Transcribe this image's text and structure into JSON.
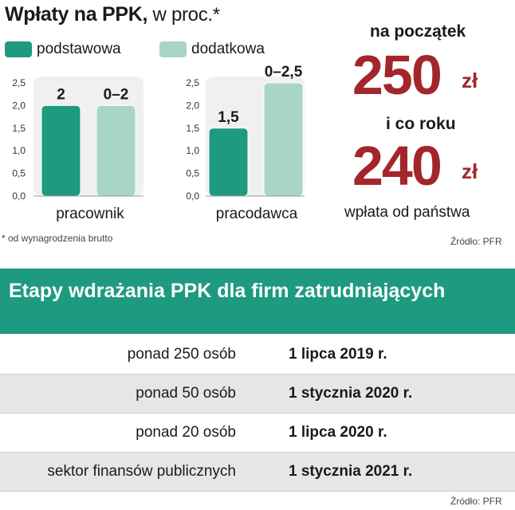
{
  "header": {
    "title": "Wpłaty na PPK,",
    "unit": " w  proc.*"
  },
  "legend": [
    {
      "label": "podstawowa",
      "color": "#1e9a80"
    },
    {
      "label": "dodatkowa",
      "color": "#a8d5c8"
    }
  ],
  "chart_data": [
    {
      "type": "bar",
      "title": "",
      "xlabel": "pracownik",
      "ylabel": "",
      "ylim": [
        0,
        2.5
      ],
      "yticks": [
        "0,0",
        "0,5",
        "1,0",
        "1,5",
        "2,0",
        "2,5"
      ],
      "grid": false,
      "series": [
        {
          "name": "podstawowa",
          "values": [
            2
          ],
          "label": "2",
          "color": "#1e9a80"
        },
        {
          "name": "dodatkowa",
          "values": [
            2
          ],
          "label": "0–2",
          "color": "#a8d5c8"
        }
      ]
    },
    {
      "type": "bar",
      "title": "",
      "xlabel": "pracodawca",
      "ylabel": "",
      "ylim": [
        0,
        2.5
      ],
      "yticks": [
        "0,0",
        "0,5",
        "1,0",
        "1,5",
        "2,0",
        "2,5"
      ],
      "grid": false,
      "series": [
        {
          "name": "podstawowa",
          "values": [
            1.5
          ],
          "label": "1,5",
          "color": "#1e9a80"
        },
        {
          "name": "dodatkowa",
          "values": [
            2.5
          ],
          "label": "0–2,5",
          "color": "#a8d5c8"
        }
      ]
    }
  ],
  "state_contribution": {
    "start_label": "na początek",
    "start_value": "250",
    "currency": "zł",
    "yearly_label": "i co roku",
    "yearly_value": "240",
    "caption": "wpłata od państwa"
  },
  "footnote": "* od wynagrodzenia brutto",
  "source_top": "Źródło: PFR",
  "stages": {
    "title": "Etapy wdrażania PPK dla firm zatrudniających",
    "rows": [
      {
        "label": "ponad 250 osób",
        "date": "1 lipca 2019 r."
      },
      {
        "label": "ponad 50 osób",
        "date": "1 stycznia 2020 r."
      },
      {
        "label": "ponad 20 osób",
        "date": "1 lipca 2020 r."
      },
      {
        "label": "sektor finansów publicznych",
        "date": "1 stycznia 2021 r."
      }
    ],
    "source": "Źródło: PFR"
  }
}
